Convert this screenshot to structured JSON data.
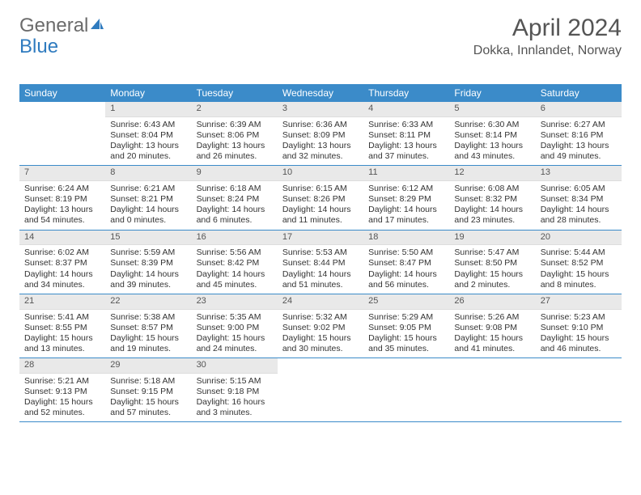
{
  "logo": {
    "text1": "General",
    "text2": "Blue"
  },
  "title": "April 2024",
  "location": "Dokka, Innlandet, Norway",
  "colors": {
    "header_bg": "#3b8bc9",
    "header_text": "#ffffff",
    "daynum_bg": "#e9e9e9",
    "border": "#3b8bc9",
    "logo_gray": "#6b6b6b",
    "logo_blue": "#2f7bbf"
  },
  "weekdays": [
    "Sunday",
    "Monday",
    "Tuesday",
    "Wednesday",
    "Thursday",
    "Friday",
    "Saturday"
  ],
  "weeks": [
    [
      null,
      {
        "n": "1",
        "sr": "Sunrise: 6:43 AM",
        "ss": "Sunset: 8:04 PM",
        "dl": "Daylight: 13 hours and 20 minutes."
      },
      {
        "n": "2",
        "sr": "Sunrise: 6:39 AM",
        "ss": "Sunset: 8:06 PM",
        "dl": "Daylight: 13 hours and 26 minutes."
      },
      {
        "n": "3",
        "sr": "Sunrise: 6:36 AM",
        "ss": "Sunset: 8:09 PM",
        "dl": "Daylight: 13 hours and 32 minutes."
      },
      {
        "n": "4",
        "sr": "Sunrise: 6:33 AM",
        "ss": "Sunset: 8:11 PM",
        "dl": "Daylight: 13 hours and 37 minutes."
      },
      {
        "n": "5",
        "sr": "Sunrise: 6:30 AM",
        "ss": "Sunset: 8:14 PM",
        "dl": "Daylight: 13 hours and 43 minutes."
      },
      {
        "n": "6",
        "sr": "Sunrise: 6:27 AM",
        "ss": "Sunset: 8:16 PM",
        "dl": "Daylight: 13 hours and 49 minutes."
      }
    ],
    [
      {
        "n": "7",
        "sr": "Sunrise: 6:24 AM",
        "ss": "Sunset: 8:19 PM",
        "dl": "Daylight: 13 hours and 54 minutes."
      },
      {
        "n": "8",
        "sr": "Sunrise: 6:21 AM",
        "ss": "Sunset: 8:21 PM",
        "dl": "Daylight: 14 hours and 0 minutes."
      },
      {
        "n": "9",
        "sr": "Sunrise: 6:18 AM",
        "ss": "Sunset: 8:24 PM",
        "dl": "Daylight: 14 hours and 6 minutes."
      },
      {
        "n": "10",
        "sr": "Sunrise: 6:15 AM",
        "ss": "Sunset: 8:26 PM",
        "dl": "Daylight: 14 hours and 11 minutes."
      },
      {
        "n": "11",
        "sr": "Sunrise: 6:12 AM",
        "ss": "Sunset: 8:29 PM",
        "dl": "Daylight: 14 hours and 17 minutes."
      },
      {
        "n": "12",
        "sr": "Sunrise: 6:08 AM",
        "ss": "Sunset: 8:32 PM",
        "dl": "Daylight: 14 hours and 23 minutes."
      },
      {
        "n": "13",
        "sr": "Sunrise: 6:05 AM",
        "ss": "Sunset: 8:34 PM",
        "dl": "Daylight: 14 hours and 28 minutes."
      }
    ],
    [
      {
        "n": "14",
        "sr": "Sunrise: 6:02 AM",
        "ss": "Sunset: 8:37 PM",
        "dl": "Daylight: 14 hours and 34 minutes."
      },
      {
        "n": "15",
        "sr": "Sunrise: 5:59 AM",
        "ss": "Sunset: 8:39 PM",
        "dl": "Daylight: 14 hours and 39 minutes."
      },
      {
        "n": "16",
        "sr": "Sunrise: 5:56 AM",
        "ss": "Sunset: 8:42 PM",
        "dl": "Daylight: 14 hours and 45 minutes."
      },
      {
        "n": "17",
        "sr": "Sunrise: 5:53 AM",
        "ss": "Sunset: 8:44 PM",
        "dl": "Daylight: 14 hours and 51 minutes."
      },
      {
        "n": "18",
        "sr": "Sunrise: 5:50 AM",
        "ss": "Sunset: 8:47 PM",
        "dl": "Daylight: 14 hours and 56 minutes."
      },
      {
        "n": "19",
        "sr": "Sunrise: 5:47 AM",
        "ss": "Sunset: 8:50 PM",
        "dl": "Daylight: 15 hours and 2 minutes."
      },
      {
        "n": "20",
        "sr": "Sunrise: 5:44 AM",
        "ss": "Sunset: 8:52 PM",
        "dl": "Daylight: 15 hours and 8 minutes."
      }
    ],
    [
      {
        "n": "21",
        "sr": "Sunrise: 5:41 AM",
        "ss": "Sunset: 8:55 PM",
        "dl": "Daylight: 15 hours and 13 minutes."
      },
      {
        "n": "22",
        "sr": "Sunrise: 5:38 AM",
        "ss": "Sunset: 8:57 PM",
        "dl": "Daylight: 15 hours and 19 minutes."
      },
      {
        "n": "23",
        "sr": "Sunrise: 5:35 AM",
        "ss": "Sunset: 9:00 PM",
        "dl": "Daylight: 15 hours and 24 minutes."
      },
      {
        "n": "24",
        "sr": "Sunrise: 5:32 AM",
        "ss": "Sunset: 9:02 PM",
        "dl": "Daylight: 15 hours and 30 minutes."
      },
      {
        "n": "25",
        "sr": "Sunrise: 5:29 AM",
        "ss": "Sunset: 9:05 PM",
        "dl": "Daylight: 15 hours and 35 minutes."
      },
      {
        "n": "26",
        "sr": "Sunrise: 5:26 AM",
        "ss": "Sunset: 9:08 PM",
        "dl": "Daylight: 15 hours and 41 minutes."
      },
      {
        "n": "27",
        "sr": "Sunrise: 5:23 AM",
        "ss": "Sunset: 9:10 PM",
        "dl": "Daylight: 15 hours and 46 minutes."
      }
    ],
    [
      {
        "n": "28",
        "sr": "Sunrise: 5:21 AM",
        "ss": "Sunset: 9:13 PM",
        "dl": "Daylight: 15 hours and 52 minutes."
      },
      {
        "n": "29",
        "sr": "Sunrise: 5:18 AM",
        "ss": "Sunset: 9:15 PM",
        "dl": "Daylight: 15 hours and 57 minutes."
      },
      {
        "n": "30",
        "sr": "Sunrise: 5:15 AM",
        "ss": "Sunset: 9:18 PM",
        "dl": "Daylight: 16 hours and 3 minutes."
      },
      null,
      null,
      null,
      null
    ]
  ]
}
